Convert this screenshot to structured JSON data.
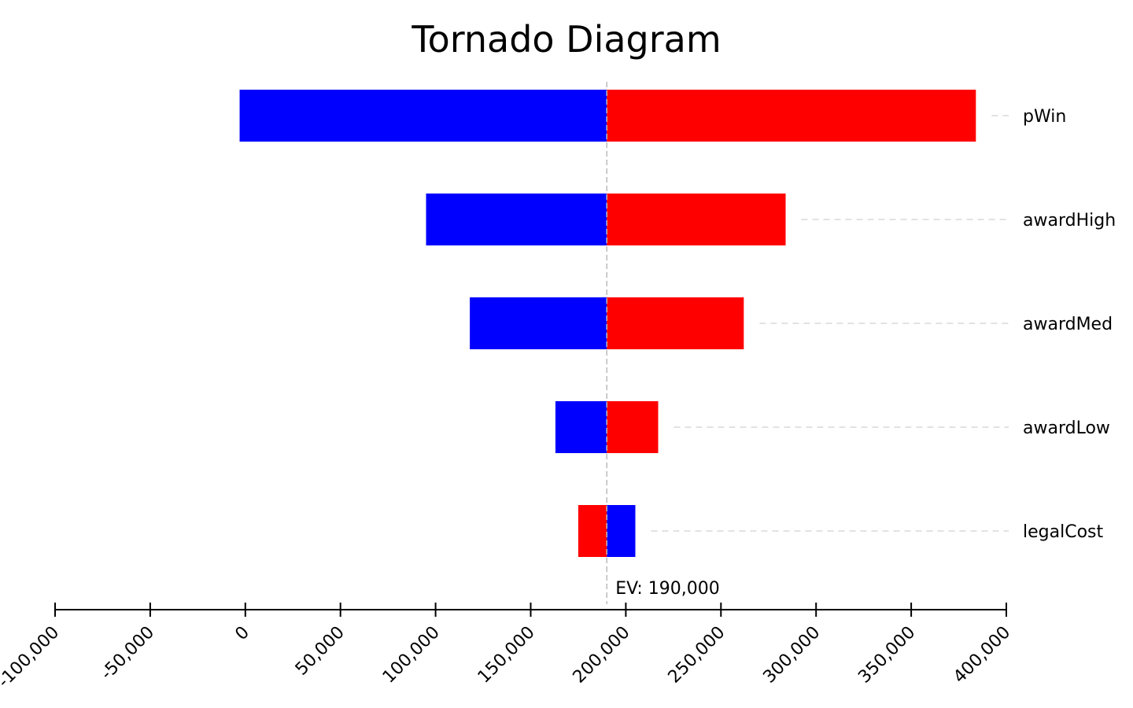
{
  "chart_data": {
    "type": "bar",
    "subtype": "tornado",
    "title": "Tornado Diagram",
    "xlabel": "",
    "ylabel": "",
    "xlim": [
      -100000,
      400000
    ],
    "x_ticks": [
      -100000,
      -50000,
      0,
      50000,
      100000,
      150000,
      200000,
      250000,
      300000,
      350000,
      400000
    ],
    "x_tick_labels": [
      "-100,000",
      "-50,000",
      "0",
      "50,000",
      "100,000",
      "150,000",
      "200,000",
      "250,000",
      "300,000",
      "350,000",
      "400,000"
    ],
    "base_value": 190000,
    "base_label": "EV: 190,000",
    "grid": false,
    "legend": "none",
    "colors": {
      "low": "#0000ff",
      "high": "#ff0000",
      "axis": "#000000",
      "guide": "#d9d9d9",
      "base_line": "#bbbbbb"
    },
    "categories": [
      "pWin",
      "awardHigh",
      "awardMed",
      "awardLow",
      "legalCost"
    ],
    "bars": [
      {
        "variable": "pWin",
        "low_input_value": -3000,
        "high_input_value": 384000
      },
      {
        "variable": "awardHigh",
        "low_input_value": 95000,
        "high_input_value": 284000
      },
      {
        "variable": "awardMed",
        "low_input_value": 118000,
        "high_input_value": 262000
      },
      {
        "variable": "awardLow",
        "low_input_value": 163000,
        "high_input_value": 217000
      },
      {
        "variable": "legalCost",
        "low_input_value": 205000,
        "high_input_value": 175000
      }
    ]
  }
}
